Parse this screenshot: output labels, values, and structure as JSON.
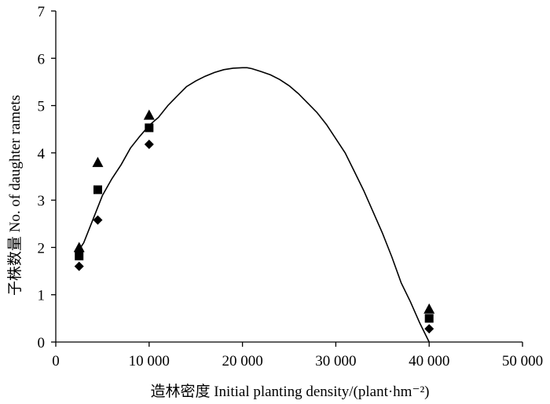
{
  "chart_data": {
    "type": "scatter",
    "title": "",
    "xlabel": "造林密度 Initial planting density/(plant·hm⁻²)",
    "ylabel": "子株数量 No. of daughter ramets",
    "xlim": [
      0,
      50000
    ],
    "ylim": [
      0,
      7
    ],
    "x_ticks": [
      0,
      10000,
      20000,
      30000,
      40000,
      50000
    ],
    "x_tick_labels": [
      "0",
      "10 000",
      "20 000",
      "30 000",
      "40 000",
      "50 000"
    ],
    "y_ticks": [
      0,
      1,
      2,
      3,
      4,
      5,
      6,
      7
    ],
    "y_tick_labels": [
      "0",
      "1",
      "2",
      "3",
      "4",
      "5",
      "6",
      "7"
    ],
    "grid": false,
    "legend": "none",
    "series": [
      {
        "marker": "triangle",
        "x": [
          2500,
          4500,
          10000,
          40000
        ],
        "y": [
          2.0,
          3.8,
          4.8,
          0.7
        ]
      },
      {
        "marker": "square",
        "x": [
          2500,
          4500,
          10000,
          40000
        ],
        "y": [
          1.82,
          3.22,
          4.53,
          0.5
        ]
      },
      {
        "marker": "diamond",
        "x": [
          2500,
          4500,
          10000,
          40000
        ],
        "y": [
          1.6,
          2.58,
          4.18,
          0.28
        ]
      }
    ],
    "fit_curve": {
      "x": [
        2500,
        3000,
        4000,
        5000,
        6000,
        7000,
        8000,
        9000,
        10000,
        11000,
        12000,
        13000,
        14000,
        15000,
        16000,
        17000,
        18000,
        19000,
        20000,
        20500,
        21000,
        22000,
        23000,
        24000,
        25000,
        26000,
        27000,
        28000,
        29000,
        30000,
        31000,
        32000,
        33000,
        34000,
        35000,
        36000,
        37000,
        38000,
        39000,
        40000
      ],
      "y": [
        1.95,
        2.1,
        2.6,
        3.1,
        3.45,
        3.75,
        4.1,
        4.35,
        4.58,
        4.75,
        5.0,
        5.2,
        5.4,
        5.52,
        5.62,
        5.7,
        5.76,
        5.79,
        5.8,
        5.8,
        5.78,
        5.72,
        5.65,
        5.55,
        5.42,
        5.25,
        5.05,
        4.85,
        4.6,
        4.3,
        4.0,
        3.6,
        3.2,
        2.75,
        2.3,
        1.8,
        1.25,
        0.85,
        0.4,
        0.0
      ]
    },
    "colors": {
      "marker": "#000000",
      "line": "#000000",
      "axis": "#000000"
    }
  }
}
